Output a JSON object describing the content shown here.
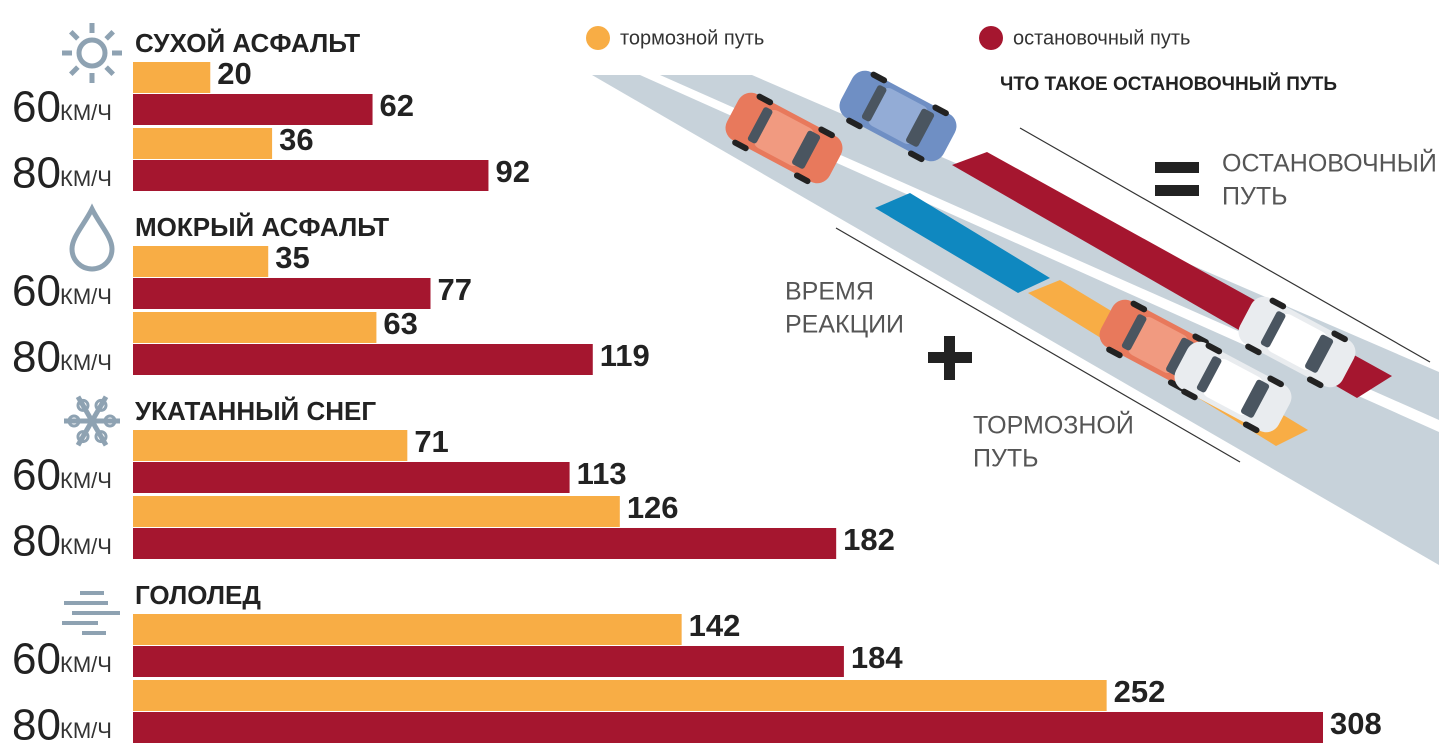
{
  "chart_data": {
    "type": "bar",
    "series": [
      {
        "name": "тормозной путь",
        "color": "#f8ad45"
      },
      {
        "name": "остановочный путь",
        "color": "#a5162f"
      }
    ],
    "speed_unit": "КМ/Ч",
    "groups": [
      {
        "name": "СУХОЙ АСФАЛЬТ",
        "icon": "sun",
        "speeds": [
          {
            "speed": "60",
            "values": [
              20,
              62
            ]
          },
          {
            "speed": "80",
            "values": [
              36,
              92
            ]
          }
        ]
      },
      {
        "name": "МОКРЫЙ АСФАЛЬТ",
        "icon": "drop",
        "speeds": [
          {
            "speed": "60",
            "values": [
              35,
              77
            ]
          },
          {
            "speed": "80",
            "values": [
              63,
              119
            ]
          }
        ]
      },
      {
        "name": "УКАТАННЫЙ СНЕГ",
        "icon": "snow",
        "speeds": [
          {
            "speed": "60",
            "values": [
              71,
              113
            ]
          },
          {
            "speed": "80",
            "values": [
              126,
              182
            ]
          }
        ]
      },
      {
        "name": "ГОЛОЛЕД",
        "icon": "fog",
        "speeds": [
          {
            "speed": "60",
            "values": [
              142,
              184
            ]
          },
          {
            "speed": "80",
            "values": [
              252,
              308
            ]
          }
        ]
      }
    ]
  },
  "diagram": {
    "title": "ЧТО ТАКОЕ ОСТАНОВОЧНЫЙ ПУТЬ",
    "result": [
      "ОСТАНОВОЧНЫЙ",
      "ПУТЬ"
    ],
    "reaction": [
      "ВРЕМЯ",
      "РЕАКЦИИ"
    ],
    "braking": [
      "ТОРМОЗНОЙ",
      "ПУТЬ"
    ]
  }
}
